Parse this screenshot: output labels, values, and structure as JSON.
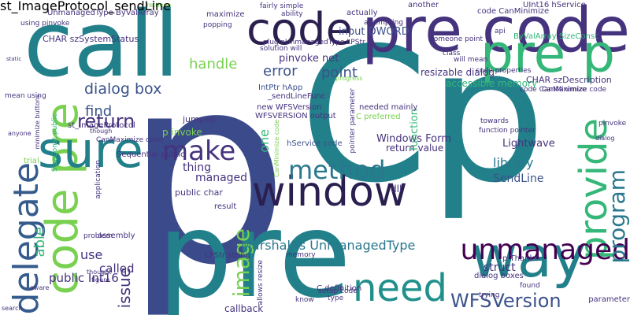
{
  "cloud_name": "word-cloud",
  "words": [
    {
      "text": "p",
      "color": "#3b4a8b",
      "vertical": false
    },
    {
      "text": "Cp",
      "color": "#21808a",
      "vertical": false
    },
    {
      "text": "pre",
      "color": "#21808a",
      "vertical": false
    },
    {
      "text": "call",
      "color": "#21808a",
      "vertical": false
    },
    {
      "text": "pre code",
      "color": "#46337e",
      "vertical": false
    },
    {
      "text": "window",
      "color": "#2b1f50",
      "vertical": false
    },
    {
      "text": "code",
      "color": "#2b1f50",
      "vertical": false
    },
    {
      "text": "pre p",
      "color": "#35b779",
      "vertical": false
    },
    {
      "text": "need",
      "color": "#21908c",
      "vertical": false
    },
    {
      "text": "code pre",
      "color": "#7ad151",
      "vertical": true
    },
    {
      "text": "sure",
      "color": "#21808a",
      "vertical": false
    },
    {
      "text": "delegate",
      "color": "#365c8d",
      "vertical": true
    },
    {
      "text": "way",
      "color": "#21808a",
      "vertical": false
    },
    {
      "text": "provide",
      "color": "#35b779",
      "vertical": true
    },
    {
      "text": "method",
      "color": "#2a788e",
      "vertical": false
    },
    {
      "text": "make",
      "color": "#46337e",
      "vertical": false
    },
    {
      "text": "unmanaged",
      "color": "#440154",
      "vertical": false
    },
    {
      "text": "WFSVersion",
      "color": "#3b528b",
      "vertical": false
    },
    {
      "text": "program",
      "color": "#2a788e",
      "vertical": true
    },
    {
      "text": "image",
      "color": "#7ad151",
      "vertical": true
    },
    {
      "text": "MarshalAs UnmanagedType",
      "color": "#2a788e",
      "vertical": false
    },
    {
      "text": "dialog box",
      "color": "#3b528b",
      "vertical": false
    },
    {
      "text": "return",
      "color": "#46337e",
      "vertical": false
    },
    {
      "text": "handle",
      "color": "#7ad151",
      "vertical": false
    },
    {
      "text": "error",
      "color": "#3b528b",
      "vertical": false
    },
    {
      "text": "point",
      "color": "#3b528b",
      "vertical": false
    },
    {
      "text": "library",
      "color": "#2a788e",
      "vertical": false
    },
    {
      "text": "thing",
      "color": "#46337e",
      "vertical": false
    },
    {
      "text": "managed",
      "color": "#46337e",
      "vertical": false
    },
    {
      "text": "input DWORD",
      "color": "#3b528b",
      "vertical": false
    },
    {
      "text": "pinvoke net",
      "color": "#46337e",
      "vertical": false
    },
    {
      "text": "issue",
      "color": "#46337e",
      "vertical": true
    },
    {
      "text": "called",
      "color": "#46337e",
      "vertical": false
    },
    {
      "text": "struct",
      "color": "#46337e",
      "vertical": false
    },
    {
      "text": "public Int16",
      "color": "#46337e",
      "vertical": false
    },
    {
      "text": "Windows Form",
      "color": "#46337e",
      "vertical": false
    },
    {
      "text": "return value",
      "color": "#46337e",
      "vertical": false
    },
    {
      "text": "SendLine",
      "color": "#3b528b",
      "vertical": false
    },
    {
      "text": "accessible memory",
      "color": "#35b779",
      "vertical": false
    },
    {
      "text": "resizable dialog",
      "color": "#46337e",
      "vertical": false
    },
    {
      "text": "Lightwave",
      "color": "#46337e",
      "vertical": false
    },
    {
      "text": "one",
      "color": "#35b779",
      "vertical": true
    },
    {
      "text": "function",
      "color": "#35b779",
      "vertical": true
    },
    {
      "text": "use",
      "color": "#46337e",
      "vertical": false
    },
    {
      "text": "dll",
      "color": "#46337e",
      "vertical": false
    },
    {
      "text": "find",
      "color": "#3b528b",
      "vertical": false
    },
    {
      "text": "able",
      "color": "#35b779",
      "vertical": true
    },
    {
      "text": "CHAR szDescription",
      "color": "#46337e",
      "vertical": false
    },
    {
      "text": "CHAR szSystemStatus",
      "color": "#46337e",
      "vertical": false
    },
    {
      "text": "using pinvoke",
      "color": "#46337e",
      "vertical": false
    },
    {
      "text": "UnmanagedType ByValArray",
      "color": "#46337e",
      "vertical": false
    },
    {
      "text": "ByValArray SizeConst",
      "color": "#35b779",
      "vertical": false
    },
    {
      "text": "code CanMinimize",
      "color": "#46337e",
      "vertical": false
    },
    {
      "text": "UInt16 hService",
      "color": "#46337e",
      "vertical": false
    },
    {
      "text": "hService code",
      "color": "#3b528b",
      "vertical": false
    },
    {
      "text": "CanMinimize code",
      "color": "#46337e",
      "vertical": false
    },
    {
      "text": "C definition",
      "color": "#46337e",
      "vertical": false
    },
    {
      "text": "new WFSVersion",
      "color": "#46337e",
      "vertical": false
    },
    {
      "text": "WFSVERSION output",
      "color": "#46337e",
      "vertical": false
    },
    {
      "text": "_sendLineFunc",
      "color": "#46337e",
      "vertical": false
    },
    {
      "text": "IntPtr hApp",
      "color": "#3b528b",
      "vertical": false
    },
    {
      "text": "st_ImageProtocol",
      "color": "#46337e",
      "vertical": false
    },
    {
      "text": "public char",
      "color": "#46337e",
      "vertical": false
    },
    {
      "text": "LPStr string",
      "color": "#46337e",
      "vertical": false
    },
    {
      "text": "p invoke",
      "color": "#7ad151",
      "vertical": false
    },
    {
      "text": "jumped",
      "color": "#46337e",
      "vertical": false
    },
    {
      "text": "callback",
      "color": "#46337e",
      "vertical": false
    },
    {
      "text": "parameter",
      "color": "#46337e",
      "vertical": false
    },
    {
      "text": "dialog boxes",
      "color": "#46337e",
      "vertical": false
    },
    {
      "text": "p Thanks",
      "color": "#46337e",
      "vertical": false
    },
    {
      "text": "maximize",
      "color": "#46337e",
      "vertical": false
    },
    {
      "text": "actually",
      "color": "#46337e",
      "vertical": false
    },
    {
      "text": "another",
      "color": "#46337e",
      "vertical": false
    },
    {
      "text": "needed mainly",
      "color": "#46337e",
      "vertical": false
    },
    {
      "text": "C preferred",
      "color": "#7ad151",
      "vertical": false
    },
    {
      "text": "code properties",
      "color": "#46337e",
      "vertical": false
    },
    {
      "text": "code CanMaximize",
      "color": "#46337e",
      "vertical": false
    },
    {
      "text": "class",
      "color": "#46337e",
      "vertical": false
    },
    {
      "text": "will mean",
      "color": "#46337e",
      "vertical": false
    },
    {
      "text": "someone point",
      "color": "#46337e",
      "vertical": false
    },
    {
      "text": "api",
      "color": "#46337e",
      "vertical": false
    },
    {
      "text": "towards",
      "color": "#46337e",
      "vertical": false
    },
    {
      "text": "function pointer",
      "color": "#46337e",
      "vertical": false
    },
    {
      "text": "pinvoke",
      "color": "#46337e",
      "vertical": false
    },
    {
      "text": "found",
      "color": "#46337e",
      "vertical": false
    },
    {
      "text": "trying",
      "color": "#46337e",
      "vertical": false
    },
    {
      "text": "type",
      "color": "#46337e",
      "vertical": false
    },
    {
      "text": "know",
      "color": "#46337e",
      "vertical": false
    },
    {
      "text": "result",
      "color": "#46337e",
      "vertical": false
    },
    {
      "text": "assembly",
      "color": "#46337e",
      "vertical": false
    },
    {
      "text": "trial",
      "color": "#7ad151",
      "vertical": false
    },
    {
      "text": "mean using",
      "color": "#46337e",
      "vertical": false
    },
    {
      "text": "search",
      "color": "#46337e",
      "vertical": false
    },
    {
      "text": "fairly simple",
      "color": "#46337e",
      "vertical": false
    },
    {
      "text": "ability",
      "color": "#46337e",
      "vertical": false
    },
    {
      "text": "solution will",
      "color": "#46337e",
      "vertical": false
    },
    {
      "text": "plugin",
      "color": "#46337e",
      "vertical": false
    },
    {
      "text": "UnmanagedType LPStr",
      "color": "#46337e",
      "vertical": false
    },
    {
      "text": "popping",
      "color": "#46337e",
      "vertical": false
    },
    {
      "text": "attempting",
      "color": "#46337e",
      "vertical": false
    },
    {
      "text": "setup code",
      "color": "#46337e",
      "vertical": false
    },
    {
      "text": "memory",
      "color": "#46337e",
      "vertical": false
    },
    {
      "text": "allows resize",
      "color": "#46337e",
      "vertical": true
    },
    {
      "text": "pointer parameter",
      "color": "#46337e",
      "vertical": true
    },
    {
      "text": "CanMaximize code",
      "color": "#46337e",
      "vertical": false
    },
    {
      "text": "Sequential public",
      "color": "#46337e",
      "vertical": false
    },
    {
      "text": "SizeConst public",
      "color": "#35b779",
      "vertical": true
    },
    {
      "text": "minimize buttons",
      "color": "#46337e",
      "vertical": true
    },
    {
      "text": "application",
      "color": "#46337e",
      "vertical": true
    },
    {
      "text": "problem",
      "color": "#46337e",
      "vertical": false
    },
    {
      "text": "thought",
      "color": "#46337e",
      "vertical": false
    },
    {
      "text": "aware",
      "color": "#46337e",
      "vertical": false
    },
    {
      "text": "figure",
      "color": "#46337e",
      "vertical": false
    },
    {
      "text": "anyone",
      "color": "#46337e",
      "vertical": false
    },
    {
      "text": "static",
      "color": "#46337e",
      "vertical": false
    },
    {
      "text": "though",
      "color": "#46337e",
      "vertical": false
    },
    {
      "text": "dialog",
      "color": "#46337e",
      "vertical": false
    },
    {
      "text": "CanMinimize code",
      "color": "#7ad151",
      "vertical": true
    },
    {
      "text": "progress",
      "color": "#7ad151",
      "vertical": false
    },
    {
      "text": "retrieve",
      "color": "#7ad151",
      "vertical": false
    },
    {
      "text": "st_ImageProtocol_sendLine",
      "color": "#46337e",
      "vertical": true
    }
  ]
}
